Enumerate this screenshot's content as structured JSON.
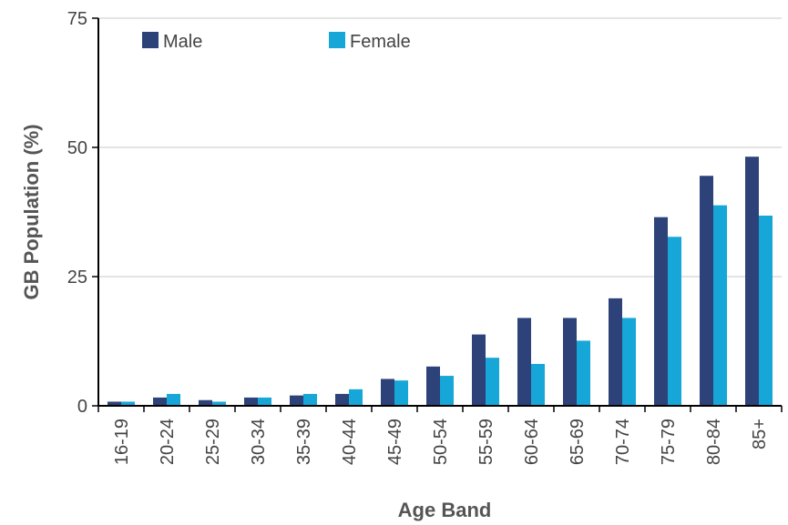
{
  "chart_data": {
    "type": "bar",
    "title": "",
    "xlabel": "Age Band",
    "ylabel": "GB Population (%)",
    "ylim": [
      0,
      75
    ],
    "yticks": [
      0,
      25,
      50,
      75
    ],
    "grid": true,
    "legend_position": "top-left",
    "categories": [
      "16-19",
      "20-24",
      "25-29",
      "30-34",
      "35-39",
      "40-44",
      "45-49",
      "50-54",
      "55-59",
      "60-64",
      "65-69",
      "70-74",
      "75-79",
      "80-84",
      "85+"
    ],
    "series": [
      {
        "name": "Male",
        "color": "#2c4278",
        "values": [
          0.8,
          1.6,
          1.1,
          1.6,
          2.0,
          2.3,
          5.2,
          7.6,
          13.8,
          17.0,
          17.0,
          20.8,
          36.5,
          44.5,
          48.2
        ]
      },
      {
        "name": "Female",
        "color": "#17a6d8",
        "values": [
          0.8,
          2.3,
          0.8,
          1.6,
          2.3,
          3.2,
          4.9,
          5.8,
          9.3,
          8.1,
          12.6,
          17.0,
          32.7,
          38.8,
          36.8
        ]
      }
    ]
  }
}
